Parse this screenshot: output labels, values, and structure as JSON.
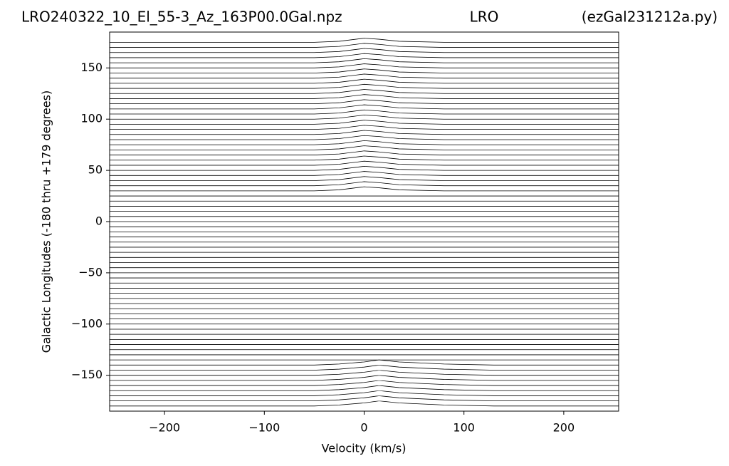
{
  "chart_data": {
    "type": "waterfall",
    "title_left": "LRO240322_10_El_55-3_Az_163P00.0Gal.npz",
    "title_center": "LRO",
    "title_right": "(ezGal231212a.py)",
    "xlabel": "Velocity (km/s)",
    "ylabel": "Galactic Longitudes   (-180 thru +179 degrees)",
    "color": "#000000",
    "xlim": [
      -255,
      255
    ],
    "ylim": [
      -185,
      185
    ],
    "xticks": [
      {
        "value": -200,
        "label": "−200"
      },
      {
        "value": -100,
        "label": "−100"
      },
      0,
      100,
      200
    ],
    "yticks": [
      {
        "value": -150,
        "label": "−150"
      },
      {
        "value": -100,
        "label": "−100"
      },
      {
        "value": -50,
        "label": "−50"
      },
      0,
      50,
      100,
      150
    ],
    "x": [
      -255,
      -130,
      -50,
      -25,
      0,
      15,
      35,
      80,
      130,
      255
    ],
    "series": [
      {
        "values": [
          -180,
          -180,
          -180,
          -179,
          -177,
          -175,
          -177,
          -179,
          -180,
          -180
        ]
      },
      {
        "values": [
          -175,
          -175,
          -175,
          -174,
          -172,
          -170,
          -172,
          -174,
          -175,
          -175
        ]
      },
      {
        "values": [
          -170,
          -170,
          -170,
          -169,
          -167,
          -165,
          -167,
          -169,
          -170,
          -170
        ]
      },
      {
        "values": [
          -165,
          -165,
          -165,
          -164,
          -162,
          -160,
          -162,
          -164,
          -165,
          -165
        ]
      },
      {
        "values": [
          -160,
          -160,
          -160,
          -159,
          -157,
          -155,
          -157,
          -159,
          -160,
          -160
        ]
      },
      {
        "values": [
          -155,
          -155,
          -155,
          -154,
          -152,
          -150,
          -152,
          -154,
          -155,
          -155
        ]
      },
      {
        "values": [
          -150,
          -150,
          -150,
          -149,
          -147,
          -145,
          -147,
          -149,
          -150,
          -150
        ]
      },
      {
        "values": [
          -145,
          -145,
          -145,
          -144,
          -142,
          -140,
          -142,
          -144,
          -145,
          -145
        ]
      },
      {
        "values": [
          -140,
          -140,
          -140,
          -139,
          -137,
          -135,
          -137,
          -139,
          -140,
          -140
        ]
      },
      {
        "values": [
          -135,
          -135,
          -135,
          -135,
          -135,
          -135,
          -135,
          -135,
          -135,
          -135
        ]
      },
      {
        "values": [
          -130,
          -130,
          -130,
          -130,
          -130,
          -130,
          -130,
          -130,
          -130,
          -130
        ]
      },
      {
        "values": [
          -125,
          -125,
          -125,
          -125,
          -125,
          -125,
          -125,
          -125,
          -125,
          -125
        ]
      },
      {
        "values": [
          -120,
          -120,
          -120,
          -120,
          -120,
          -120,
          -120,
          -120,
          -120,
          -120
        ]
      },
      {
        "values": [
          -115,
          -115,
          -115,
          -115,
          -115,
          -115,
          -115,
          -115,
          -115,
          -115
        ]
      },
      {
        "values": [
          -110,
          -110,
          -110,
          -110,
          -110,
          -110,
          -110,
          -110,
          -110,
          -110
        ]
      },
      {
        "values": [
          -105,
          -105,
          -105,
          -105,
          -105,
          -105,
          -105,
          -105,
          -105,
          -105
        ]
      },
      {
        "values": [
          -100,
          -100,
          -100,
          -100,
          -100,
          -100,
          -100,
          -100,
          -100,
          -100
        ]
      },
      {
        "values": [
          -95,
          -95,
          -95,
          -95,
          -95,
          -95,
          -95,
          -95,
          -95,
          -95
        ]
      },
      {
        "values": [
          -90,
          -90,
          -90,
          -90,
          -90,
          -90,
          -90,
          -90,
          -90,
          -90
        ]
      },
      {
        "values": [
          -85,
          -85,
          -85,
          -85,
          -85,
          -85,
          -85,
          -85,
          -85,
          -85
        ]
      },
      {
        "values": [
          -80,
          -80,
          -80,
          -80,
          -80,
          -80,
          -80,
          -80,
          -80,
          -80
        ]
      },
      {
        "values": [
          -75,
          -75,
          -75,
          -75,
          -75,
          -75,
          -75,
          -75,
          -75,
          -75
        ]
      },
      {
        "values": [
          -70,
          -70,
          -70,
          -70,
          -70,
          -70,
          -70,
          -70,
          -70,
          -70
        ]
      },
      {
        "values": [
          -65,
          -65,
          -65,
          -65,
          -65,
          -65,
          -65,
          -65,
          -65,
          -65
        ]
      },
      {
        "values": [
          -60,
          -60,
          -60,
          -60,
          -60,
          -60,
          -60,
          -60,
          -60,
          -60
        ]
      },
      {
        "values": [
          -55,
          -55,
          -55,
          -55,
          -55,
          -55,
          -55,
          -55,
          -55,
          -55
        ]
      },
      {
        "values": [
          -50,
          -50,
          -50,
          -50,
          -50,
          -50,
          -50,
          -50,
          -50,
          -50
        ]
      },
      {
        "values": [
          -45,
          -45,
          -45,
          -45,
          -45,
          -45,
          -45,
          -45,
          -45,
          -45
        ]
      },
      {
        "values": [
          -40,
          -40,
          -40,
          -40,
          -40,
          -40,
          -40,
          -40,
          -40,
          -40
        ]
      },
      {
        "values": [
          -35,
          -35,
          -35,
          -35,
          -35,
          -35,
          -35,
          -35,
          -35,
          -35
        ]
      },
      {
        "values": [
          -30,
          -30,
          -30,
          -30,
          -30,
          -30,
          -30,
          -30,
          -30,
          -30
        ]
      },
      {
        "values": [
          -25,
          -25,
          -25,
          -25,
          -25,
          -25,
          -25,
          -25,
          -25,
          -25
        ]
      },
      {
        "values": [
          -20,
          -20,
          -20,
          -20,
          -20,
          -20,
          -20,
          -20,
          -20,
          -20
        ]
      },
      {
        "values": [
          -15,
          -15,
          -15,
          -15,
          -15,
          -15,
          -15,
          -15,
          -15,
          -15
        ]
      },
      {
        "values": [
          -10,
          -10,
          -10,
          -10,
          -10,
          -10,
          -10,
          -10,
          -10,
          -10
        ]
      },
      {
        "values": [
          -5,
          -5,
          -5,
          -5,
          -5,
          -5,
          -5,
          -5,
          -5,
          -5
        ]
      },
      {
        "values": [
          0,
          0,
          0,
          0,
          0,
          0,
          0,
          0,
          0,
          0
        ]
      },
      {
        "values": [
          5,
          5,
          5,
          5,
          5,
          5,
          5,
          5,
          5,
          5
        ]
      },
      {
        "values": [
          10,
          10,
          10,
          10,
          10,
          10,
          10,
          10,
          10,
          10
        ]
      },
      {
        "values": [
          15,
          15,
          15,
          15,
          15,
          15,
          15,
          15,
          15,
          15
        ]
      },
      {
        "values": [
          20,
          20,
          20,
          20,
          20,
          20,
          20,
          20,
          20,
          20
        ]
      },
      {
        "values": [
          25,
          25,
          25,
          25,
          25,
          25,
          25,
          25,
          25,
          25
        ]
      },
      {
        "values": [
          30,
          30,
          30,
          31,
          34,
          33,
          31,
          30,
          30,
          30
        ]
      },
      {
        "values": [
          35,
          35,
          35,
          36,
          39,
          38,
          36,
          35,
          35,
          35
        ]
      },
      {
        "values": [
          40,
          40,
          40,
          41,
          44,
          43,
          41,
          40,
          40,
          40
        ]
      },
      {
        "values": [
          45,
          45,
          45,
          46,
          49,
          48,
          46,
          45,
          45,
          45
        ]
      },
      {
        "values": [
          50,
          50,
          50,
          51,
          54,
          53,
          51,
          50,
          50,
          50
        ]
      },
      {
        "values": [
          55,
          55,
          55,
          56,
          59,
          58,
          56,
          55,
          55,
          55
        ]
      },
      {
        "values": [
          60,
          60,
          60,
          61,
          64,
          63,
          61,
          60,
          60,
          60
        ]
      },
      {
        "values": [
          65,
          65,
          65,
          66,
          69,
          68,
          66,
          65,
          65,
          65
        ]
      },
      {
        "values": [
          70,
          70,
          70,
          71,
          74,
          73,
          71,
          70,
          70,
          70
        ]
      },
      {
        "values": [
          75,
          75,
          75,
          76,
          79,
          78,
          76,
          75,
          75,
          75
        ]
      },
      {
        "values": [
          80,
          80,
          80,
          81,
          84,
          83,
          81,
          80,
          80,
          80
        ]
      },
      {
        "values": [
          85,
          85,
          85,
          86,
          89,
          88,
          86,
          85,
          85,
          85
        ]
      },
      {
        "values": [
          90,
          90,
          90,
          91,
          94,
          93,
          91,
          90,
          90,
          90
        ]
      },
      {
        "values": [
          95,
          95,
          95,
          96,
          99,
          98,
          96,
          95,
          95,
          95
        ]
      },
      {
        "values": [
          100,
          100,
          100,
          101,
          104,
          103,
          101,
          100,
          100,
          100
        ]
      },
      {
        "values": [
          105,
          105,
          105,
          106,
          109,
          108,
          106,
          105,
          105,
          105
        ]
      },
      {
        "values": [
          110,
          110,
          110,
          111,
          114,
          113,
          111,
          110,
          110,
          110
        ]
      },
      {
        "values": [
          115,
          115,
          115,
          116,
          119,
          118,
          116,
          115,
          115,
          115
        ]
      },
      {
        "values": [
          120,
          120,
          120,
          121,
          124,
          123,
          121,
          120,
          120,
          120
        ]
      },
      {
        "values": [
          125,
          125,
          125,
          126,
          129,
          128,
          126,
          125,
          125,
          125
        ]
      },
      {
        "values": [
          130,
          130,
          130,
          131,
          134,
          133,
          131,
          130,
          130,
          130
        ]
      },
      {
        "values": [
          135,
          135,
          135,
          136,
          139,
          138,
          136,
          135,
          135,
          135
        ]
      },
      {
        "values": [
          140,
          140,
          140,
          141,
          144,
          143,
          141,
          140,
          140,
          140
        ]
      },
      {
        "values": [
          145,
          145,
          145,
          146,
          149,
          148,
          146,
          145,
          145,
          145
        ]
      },
      {
        "values": [
          150,
          150,
          150,
          151,
          154,
          153,
          151,
          150,
          150,
          150
        ]
      },
      {
        "values": [
          155,
          155,
          155,
          156,
          159,
          158,
          156,
          155,
          155,
          155
        ]
      },
      {
        "values": [
          160,
          160,
          160,
          161,
          164,
          163,
          161,
          160,
          160,
          160
        ]
      },
      {
        "values": [
          165,
          165,
          165,
          166,
          169,
          168,
          166,
          165,
          165,
          165
        ]
      },
      {
        "values": [
          170,
          170,
          170,
          171,
          174,
          173,
          171,
          170,
          170,
          170
        ]
      },
      {
        "values": [
          175,
          175,
          175,
          176,
          179,
          178,
          176,
          175,
          175,
          175
        ]
      }
    ]
  }
}
